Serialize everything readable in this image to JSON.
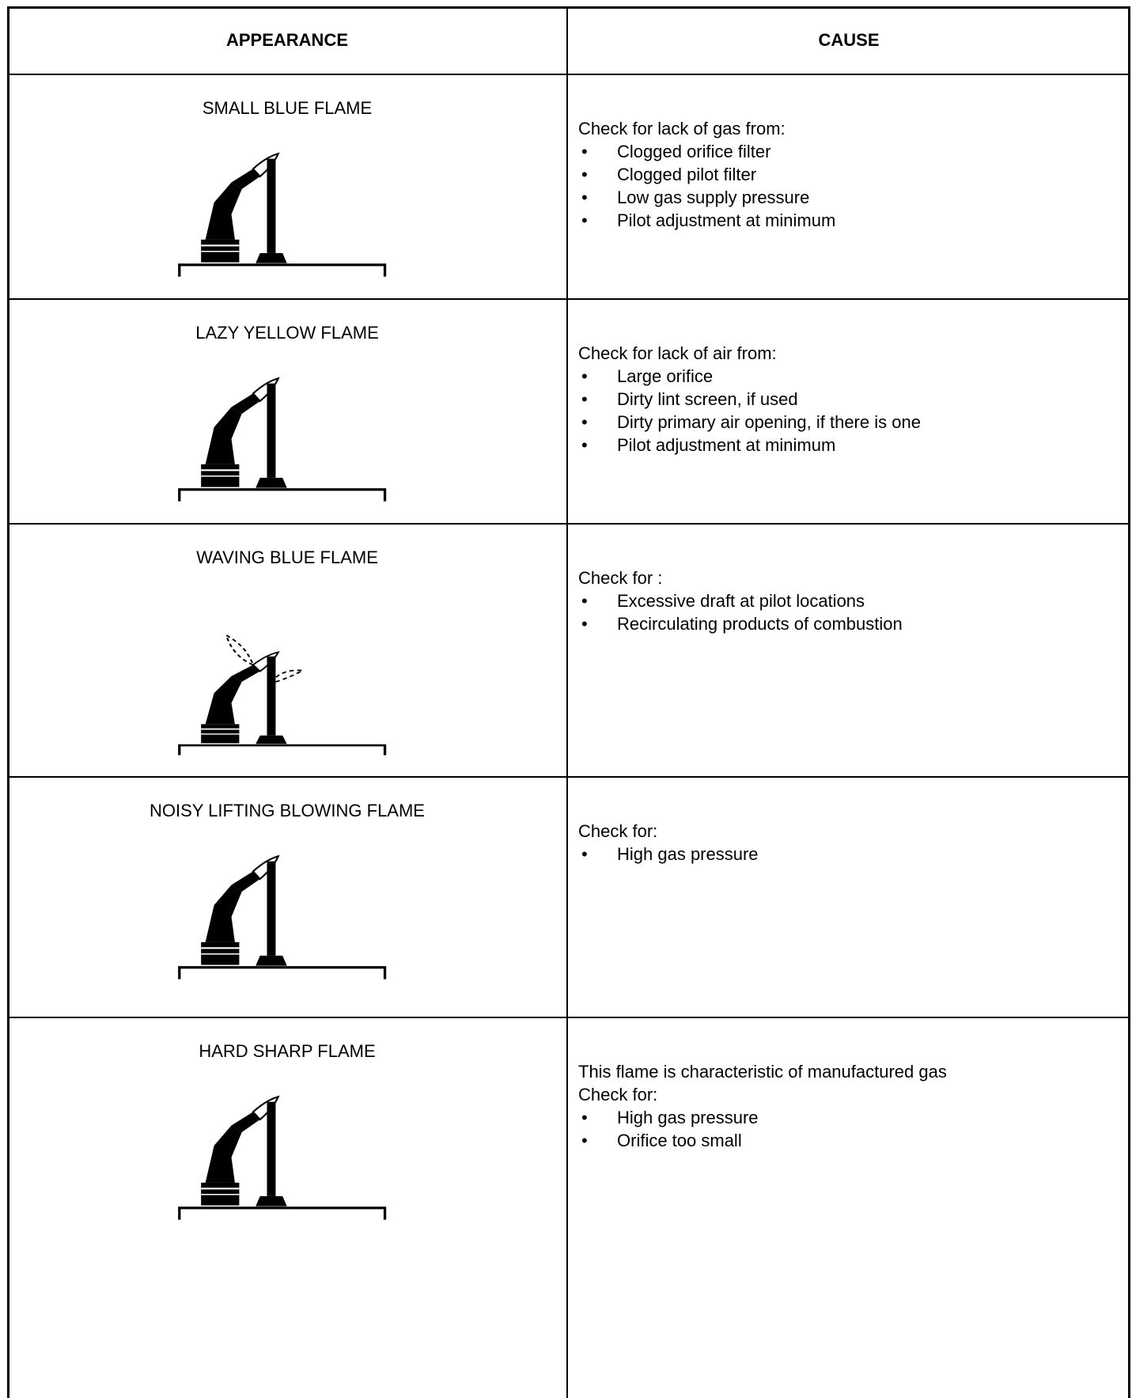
{
  "header": {
    "appearance": "APPEARANCE",
    "cause": "CAUSE"
  },
  "rows": [
    {
      "appearance": "SMALL BLUE FLAME",
      "intro": [
        "Check for lack of gas from:"
      ],
      "bullets": [
        "Clogged orifice filter",
        "Clogged pilot filter",
        "Low gas supply pressure",
        "Pilot adjustment at minimum"
      ]
    },
    {
      "appearance": "LAZY YELLOW FLAME",
      "intro": [
        "Check for lack of air from:"
      ],
      "bullets": [
        "Large orifice",
        "Dirty lint screen, if used",
        "Dirty primary air opening, if there is one",
        "Pilot adjustment at minimum"
      ]
    },
    {
      "appearance": "WAVING BLUE FLAME",
      "intro": [
        "Check for :"
      ],
      "bullets": [
        "Excessive draft at pilot locations",
        "Recirculating products of combustion"
      ]
    },
    {
      "appearance": "NOISY LIFTING BLOWING FLAME",
      "intro": [
        "Check for:"
      ],
      "bullets": [
        "High gas pressure"
      ]
    },
    {
      "appearance": "HARD SHARP FLAME",
      "intro": [
        "This flame is characteristic of manufactured gas",
        "Check for:"
      ],
      "bullets": [
        "High gas pressure",
        "Orifice too small"
      ]
    }
  ]
}
